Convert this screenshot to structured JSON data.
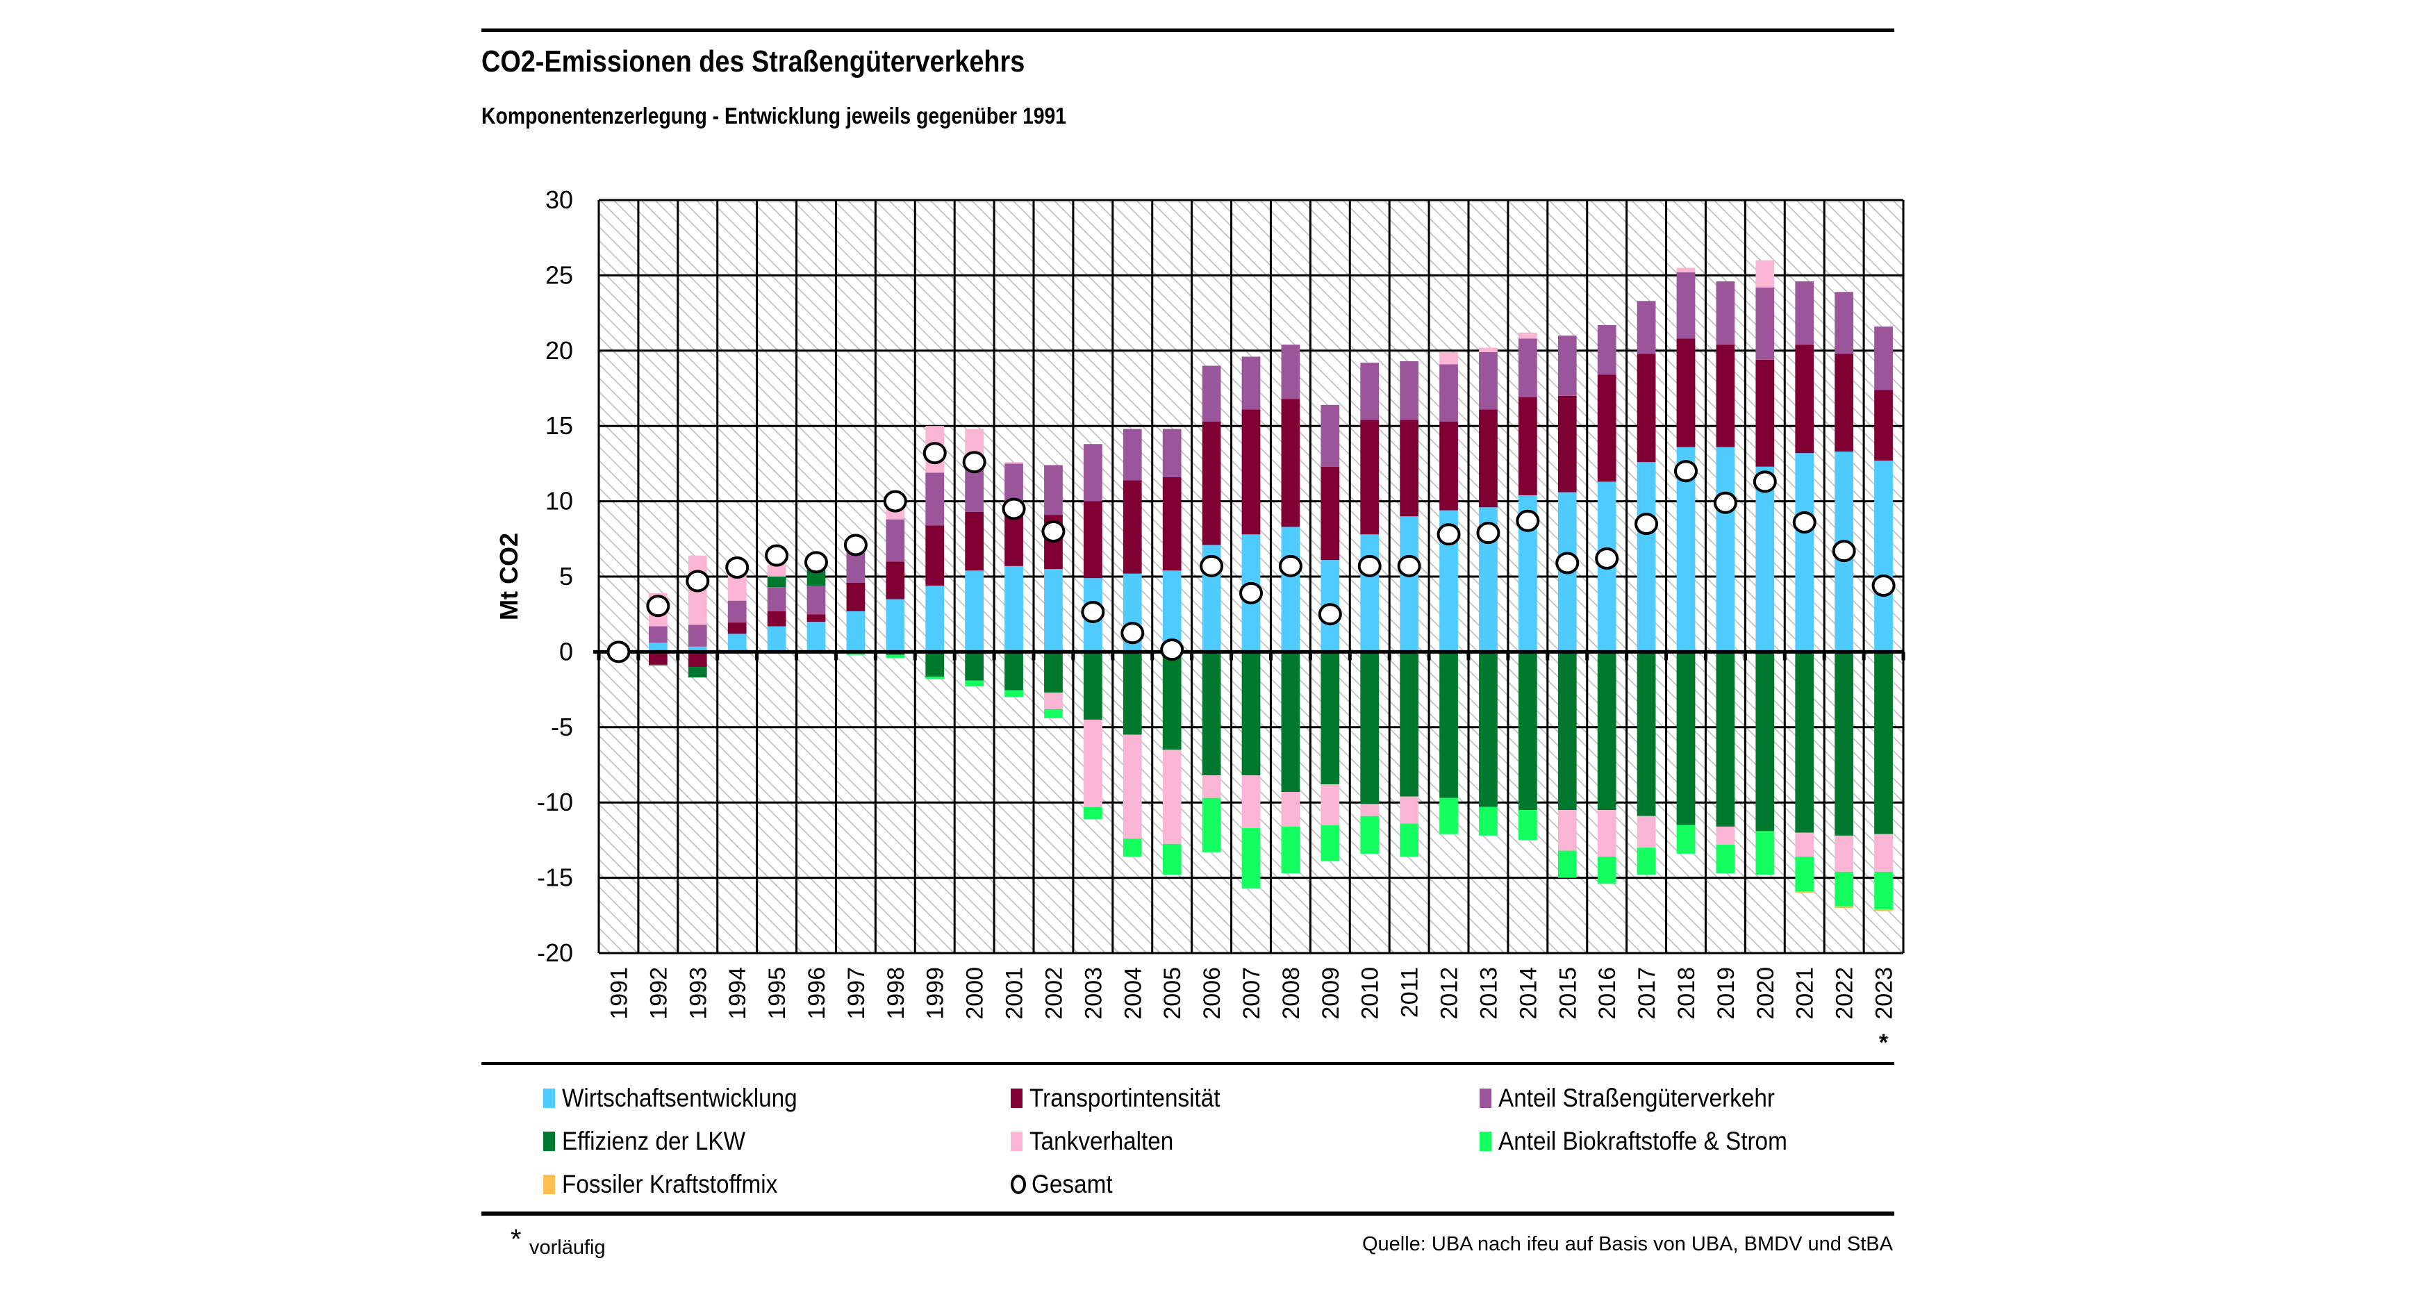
{
  "header": {
    "title": "CO2-Emissionen des Straßengüterverkehrs",
    "subtitle": "Komponentenzerlegung - Entwicklung jeweils gegenüber 1991"
  },
  "footer": {
    "footnote_marker": "*",
    "footnote_text": "vorläufig",
    "source": "Quelle: UBA nach ifeu auf Basis von UBA, BMDV und StBA"
  },
  "colors": {
    "wirtschaft": "#4FCBFF",
    "transport": "#800033",
    "anteil_strasse": "#9B569B",
    "effizienz": "#00782D",
    "tank": "#FAB5D4",
    "bio": "#14FF5F",
    "fossil": "#FFBE50",
    "gesamt_fill": "#FFFFFF",
    "gesamt_stroke": "#000000"
  },
  "legend": [
    {
      "key": "wirtschaft",
      "label": "Wirtschaftsentwicklung"
    },
    {
      "key": "transport",
      "label": "Transportintensität"
    },
    {
      "key": "anteil_strasse",
      "label": "Anteil Straßengüterverkehr"
    },
    {
      "key": "effizienz",
      "label": "Effizienz der LKW"
    },
    {
      "key": "tank",
      "label": "Tankverhalten"
    },
    {
      "key": "bio",
      "label": "Anteil Biokraftstoffe & Strom"
    },
    {
      "key": "fossil",
      "label": "Fossiler Kraftstoffmix"
    },
    {
      "key": "gesamt",
      "label": "Gesamt"
    }
  ],
  "chart_data": {
    "type": "bar",
    "subtype": "stacked-bar-with-markers",
    "title": "CO2-Emissionen des Straßengüterverkehrs",
    "subtitle": "Komponentenzerlegung - Entwicklung jeweils gegenüber 1991",
    "xlabel": "",
    "ylabel": "Mt CO2",
    "ylim": [
      -20,
      30
    ],
    "yticks": [
      30,
      25,
      20,
      15,
      10,
      5,
      0,
      -5,
      -10,
      -15,
      -20
    ],
    "grid": true,
    "legend_position": "bottom",
    "categories": [
      "1991",
      "1992",
      "1993",
      "1994",
      "1995",
      "1996",
      "1997",
      "1998",
      "1999",
      "2000",
      "2001",
      "2002",
      "2003",
      "2004",
      "2005",
      "2006",
      "2007",
      "2008",
      "2009",
      "2010",
      "2011",
      "2012",
      "2013",
      "2014",
      "2015",
      "2016",
      "2017",
      "2018",
      "2019",
      "2020",
      "2021",
      "2022",
      "2023"
    ],
    "category_annotations": {
      "2023": "*"
    },
    "series": [
      {
        "key": "wirtschaft",
        "name": "Wirtschaftsentwicklung",
        "values": [
          0,
          0.6,
          0.35,
          1.2,
          1.7,
          2.0,
          2.7,
          3.5,
          4.4,
          5.4,
          5.7,
          5.5,
          4.9,
          5.2,
          5.4,
          7.1,
          7.8,
          8.3,
          6.1,
          7.8,
          9.0,
          9.4,
          9.6,
          10.4,
          10.6,
          11.3,
          12.6,
          13.6,
          13.6,
          12.3,
          13.2,
          13.3,
          12.7
        ]
      },
      {
        "key": "transport",
        "name": "Transportintensität",
        "values": [
          0,
          -0.85,
          -1.0,
          0.75,
          1.0,
          0.5,
          1.9,
          2.5,
          4.0,
          3.9,
          3.4,
          3.6,
          5.1,
          6.2,
          6.2,
          8.2,
          8.3,
          8.5,
          6.2,
          7.6,
          6.4,
          5.9,
          6.5,
          6.5,
          6.4,
          7.1,
          7.2,
          7.2,
          6.8,
          7.1,
          7.2,
          6.5,
          4.7
        ]
      },
      {
        "key": "anteil_strasse",
        "name": "Anteil Straßengüterverkehr",
        "values": [
          0,
          1.1,
          1.45,
          1.45,
          1.6,
          1.9,
          2.0,
          2.8,
          3.5,
          3.2,
          3.4,
          3.3,
          3.8,
          3.4,
          3.2,
          3.7,
          3.5,
          3.6,
          4.1,
          3.8,
          3.9,
          3.8,
          3.8,
          3.9,
          4.0,
          3.3,
          3.5,
          4.4,
          4.2,
          4.8,
          4.2,
          4.1,
          4.2
        ]
      },
      {
        "key": "effizienz",
        "name": "Effizienz der LKW",
        "values": [
          0,
          -0.05,
          -0.7,
          0,
          0.7,
          1.1,
          0,
          -0.2,
          -1.65,
          -1.9,
          -2.55,
          -2.7,
          -4.5,
          -5.5,
          -6.5,
          -8.2,
          -8.2,
          -9.3,
          -8.8,
          -10.1,
          -9.6,
          -9.7,
          -10.3,
          -10.5,
          -10.5,
          -10.5,
          -10.9,
          -11.5,
          -11.6,
          -11.9,
          -12.0,
          -12.2,
          -12.1
        ]
      },
      {
        "key": "tank",
        "name": "Tankverhalten",
        "values": [
          0,
          2.2,
          4.6,
          2.2,
          0.8,
          0.5,
          0,
          1.1,
          3.1,
          2.3,
          0.1,
          -1.1,
          -5.8,
          -6.9,
          -6.25,
          -1.5,
          -3.5,
          -2.3,
          -2.7,
          -0.8,
          -1.8,
          0.8,
          0.3,
          0.4,
          -2.7,
          -3.1,
          -2.1,
          0.3,
          -1.2,
          1.8,
          -1.6,
          -2.4,
          -2.5
        ]
      },
      {
        "key": "bio",
        "name": "Anteil Biokraftstoffe & Strom",
        "values": [
          0,
          0,
          0,
          0,
          0,
          0,
          -0.2,
          -0.2,
          -0.15,
          -0.4,
          -0.45,
          -0.6,
          -0.8,
          -1.2,
          -2.05,
          -3.6,
          -4.0,
          -3.1,
          -2.4,
          -2.5,
          -2.2,
          -2.4,
          -1.9,
          -2.0,
          -1.8,
          -1.8,
          -1.8,
          -1.9,
          -1.9,
          -2.9,
          -2.3,
          -2.3,
          -2.5
        ]
      },
      {
        "key": "fossil",
        "name": "Fossiler Kraftstoffmix",
        "values": [
          0,
          0,
          0,
          0,
          0,
          0,
          0,
          0,
          0,
          0,
          0,
          0,
          0,
          0,
          0,
          0,
          0,
          0,
          0,
          0,
          0,
          0,
          0,
          0,
          0,
          0,
          0,
          0,
          0,
          0,
          -0.1,
          -0.1,
          -0.1
        ]
      }
    ],
    "markers": {
      "key": "gesamt",
      "name": "Gesamt",
      "values": [
        0,
        3.05,
        4.7,
        5.6,
        6.4,
        5.95,
        7.1,
        10.0,
        13.2,
        12.6,
        9.5,
        8.0,
        2.65,
        1.25,
        0.15,
        5.7,
        3.9,
        5.7,
        2.5,
        5.7,
        5.7,
        7.8,
        7.9,
        8.7,
        5.9,
        6.2,
        8.5,
        12.0,
        9.9,
        11.3,
        8.6,
        6.7,
        4.4
      ]
    }
  }
}
